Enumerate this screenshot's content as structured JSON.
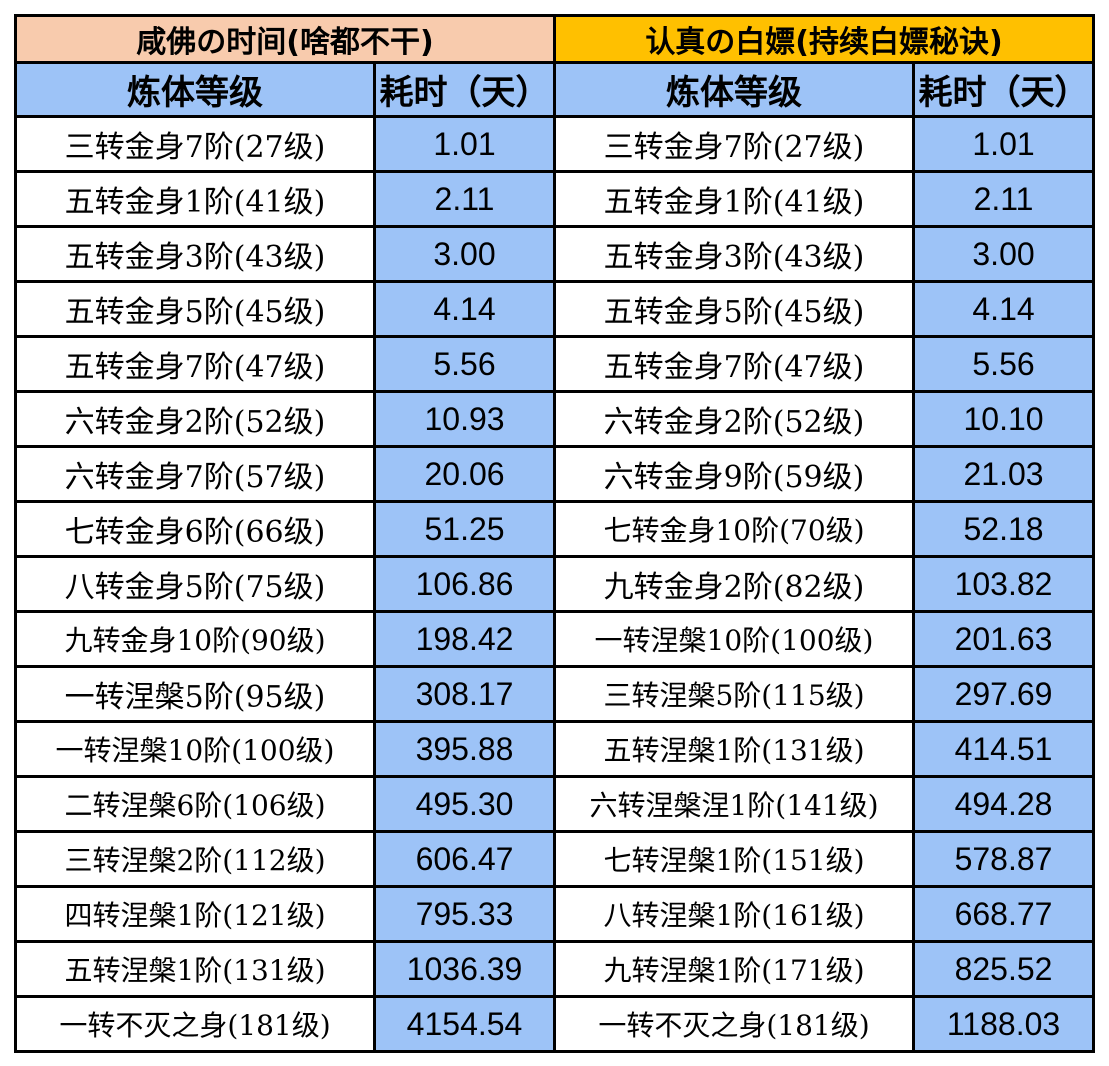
{
  "colors": {
    "title_left_bg": "#f8cbad",
    "title_right_bg": "#ffc000",
    "header_bg": "#9dc3f7",
    "time_cell_bg": "#9dc3f7",
    "level_cell_bg": "#ffffff",
    "border": "#000000"
  },
  "left": {
    "title": "咸佛の时间(啥都不干)",
    "col_level": "炼体等级",
    "col_time": "耗时（天）",
    "rows": [
      {
        "level": "三转金身7阶(27级)",
        "time": "1.01"
      },
      {
        "level": "五转金身1阶(41级)",
        "time": "2.11"
      },
      {
        "level": "五转金身3阶(43级)",
        "time": "3.00"
      },
      {
        "level": "五转金身5阶(45级)",
        "time": "4.14"
      },
      {
        "level": "五转金身7阶(47级)",
        "time": "5.56"
      },
      {
        "level": "六转金身2阶(52级)",
        "time": "10.93"
      },
      {
        "level": "六转金身7阶(57级)",
        "time": "20.06"
      },
      {
        "level": "七转金身6阶(66级)",
        "time": "51.25"
      },
      {
        "level": "八转金身5阶(75级)",
        "time": "106.86"
      },
      {
        "level": "九转金身10阶(90级)",
        "time": "198.42"
      },
      {
        "level": "一转涅槃5阶(95级)",
        "time": "308.17"
      },
      {
        "level": "一转涅槃10阶(100级)",
        "time": "395.88"
      },
      {
        "level": "二转涅槃6阶(106级)",
        "time": "495.30"
      },
      {
        "level": "三转涅槃2阶(112级)",
        "time": "606.47"
      },
      {
        "level": "四转涅槃1阶(121级)",
        "time": "795.33"
      },
      {
        "level": "五转涅槃1阶(131级)",
        "time": "1036.39"
      },
      {
        "level": "一转不灭之身(181级)",
        "time": "4154.54"
      }
    ]
  },
  "right": {
    "title": "认真の白嫖(持续白嫖秘诀)",
    "col_level": "炼体等级",
    "col_time": "耗时（天）",
    "rows": [
      {
        "level": "三转金身7阶(27级)",
        "time": "1.01"
      },
      {
        "level": "五转金身1阶(41级)",
        "time": "2.11"
      },
      {
        "level": "五转金身3阶(43级)",
        "time": "3.00"
      },
      {
        "level": "五转金身5阶(45级)",
        "time": "4.14"
      },
      {
        "level": "五转金身7阶(47级)",
        "time": "5.56"
      },
      {
        "level": "六转金身2阶(52级)",
        "time": "10.10"
      },
      {
        "level": "六转金身9阶(59级)",
        "time": "21.03"
      },
      {
        "level": "七转金身10阶(70级)",
        "time": "52.18"
      },
      {
        "level": "九转金身2阶(82级)",
        "time": "103.82"
      },
      {
        "level": "一转涅槃10阶(100级)",
        "time": "201.63"
      },
      {
        "level": "三转涅槃5阶(115级)",
        "time": "297.69"
      },
      {
        "level": "五转涅槃1阶(131级)",
        "time": "414.51"
      },
      {
        "level": "六转涅槃涅1阶(141级)",
        "time": "494.28"
      },
      {
        "level": "七转涅槃1阶(151级)",
        "time": "578.87"
      },
      {
        "level": "八转涅槃1阶(161级)",
        "time": "668.77"
      },
      {
        "level": "九转涅槃1阶(171级)",
        "time": "825.52"
      },
      {
        "level": "一转不灭之身(181级)",
        "time": "1188.03"
      }
    ]
  }
}
